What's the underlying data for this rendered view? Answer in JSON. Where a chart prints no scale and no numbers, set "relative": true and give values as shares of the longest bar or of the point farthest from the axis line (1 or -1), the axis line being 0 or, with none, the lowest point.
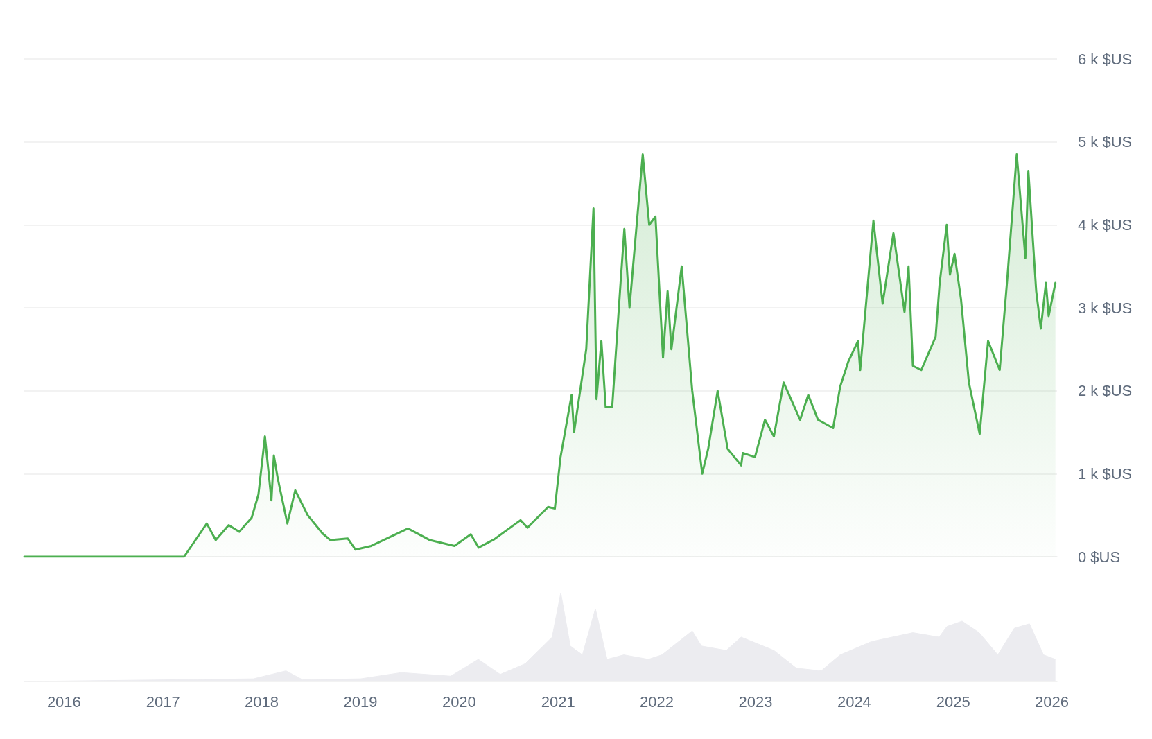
{
  "chart_data": [
    {
      "type": "area",
      "x": [
        "2015-08-07",
        "2016-06-15",
        "2017-01-15",
        "2017-03-20",
        "2017-06-12",
        "2017-07-15",
        "2017-09-01",
        "2017-10-10",
        "2017-11-25",
        "2017-12-20",
        "2018-01-13",
        "2018-02-06",
        "2018-02-15",
        "2018-03-01",
        "2018-04-06",
        "2018-05-05",
        "2018-06-20",
        "2018-08-14",
        "2018-09-12",
        "2018-11-15",
        "2018-12-14",
        "2019-02-10",
        "2019-06-26",
        "2019-09-15",
        "2019-12-15",
        "2020-02-13",
        "2020-03-13",
        "2020-05-10",
        "2020-08-15",
        "2020-09-10",
        "2020-11-25",
        "2020-12-20",
        "2021-01-10",
        "2021-02-20",
        "2021-03-01",
        "2021-04-15",
        "2021-05-12",
        "2021-05-23",
        "2021-06-10",
        "2021-06-26",
        "2021-07-20",
        "2021-08-20",
        "2021-09-03",
        "2021-09-22",
        "2021-11-10",
        "2021-12-04",
        "2021-12-27",
        "2022-01-24",
        "2022-02-10",
        "2022-02-24",
        "2022-04-03",
        "2022-05-12",
        "2022-06-18",
        "2022-07-10",
        "2022-08-14",
        "2022-09-20",
        "2022-11-09",
        "2022-11-15",
        "2022-12-30",
        "2023-02-05",
        "2023-03-10",
        "2023-04-15",
        "2023-06-15",
        "2023-07-15",
        "2023-08-20",
        "2023-10-15",
        "2023-11-10",
        "2023-12-10",
        "2024-01-15",
        "2024-01-23",
        "2024-03-12",
        "2024-04-15",
        "2024-05-25",
        "2024-07-05",
        "2024-07-20",
        "2024-08-05",
        "2024-09-05",
        "2024-10-28",
        "2024-11-12",
        "2024-12-08",
        "2024-12-20",
        "2025-01-06",
        "2025-01-30",
        "2025-02-28",
        "2025-04-09",
        "2025-05-10",
        "2025-06-22",
        "2025-07-20",
        "2025-08-24",
        "2025-09-25",
        "2025-10-06",
        "2025-11-04",
        "2025-11-21",
        "2025-12-10",
        "2025-12-20",
        "2026-01-14"
      ],
      "series": [
        {
          "color": "#4caf50",
          "values": [
            0,
            0,
            0,
            0,
            400,
            200,
            380,
            300,
            470,
            750,
            1450,
            680,
            1220,
            950,
            400,
            800,
            500,
            280,
            200,
            220,
            85,
            130,
            340,
            200,
            130,
            270,
            110,
            210,
            440,
            350,
            600,
            580,
            1200,
            1950,
            1500,
            2500,
            4200,
            1900,
            2600,
            1800,
            1800,
            3300,
            3950,
            3000,
            4850,
            4000,
            4100,
            2400,
            3200,
            2500,
            3500,
            2000,
            1000,
            1300,
            2000,
            1300,
            1100,
            1250,
            1200,
            1650,
            1450,
            2100,
            1650,
            1950,
            1650,
            1550,
            2050,
            2350,
            2600,
            2250,
            4050,
            3050,
            3900,
            2950,
            3500,
            2300,
            2250,
            2650,
            3300,
            4000,
            3400,
            3650,
            3100,
            2100,
            1480,
            2600,
            2250,
            3350,
            4850,
            3600,
            4650,
            3200,
            2750,
            3300,
            2900,
            3300
          ]
        }
      ],
      "xlim": [
        "2015-08-07",
        "2026-01-20"
      ],
      "xticks": [
        "2016",
        "2017",
        "2018",
        "2019",
        "2020",
        "2021",
        "2022",
        "2023",
        "2024",
        "2025",
        "2026"
      ],
      "ylim": [
        0,
        6000
      ],
      "yticks": [
        {
          "value": 0,
          "label": "0 $US"
        },
        {
          "value": 1000,
          "label": "1 k $US"
        },
        {
          "value": 2000,
          "label": "2 k $US"
        },
        {
          "value": 3000,
          "label": "3 k $US"
        },
        {
          "value": 4000,
          "label": "4 k $US"
        },
        {
          "value": 5000,
          "label": "5 k $US"
        },
        {
          "value": 6000,
          "label": "6 k $US"
        }
      ],
      "grid": "y",
      "tick_labels": "y"
    },
    {
      "type": "area",
      "relative": true,
      "x": [
        "2015-08-07",
        "2017-12-01",
        "2018-04-01",
        "2018-06-01",
        "2019-01-01",
        "2019-06-01",
        "2019-12-01",
        "2020-03-12",
        "2020-06-01",
        "2020-09-01",
        "2020-12-10",
        "2021-01-11",
        "2021-02-15",
        "2021-04-01",
        "2021-05-19",
        "2021-07-01",
        "2021-09-01",
        "2021-12-01",
        "2022-01-20",
        "2022-05-12",
        "2022-06-15",
        "2022-09-15",
        "2022-11-09",
        "2023-03-10",
        "2023-06-01",
        "2023-09-01",
        "2023-11-10",
        "2024-03-05",
        "2024-08-05",
        "2024-11-10",
        "2024-12-09",
        "2025-02-03",
        "2025-04-07",
        "2025-06-15",
        "2025-08-15",
        "2025-10-10",
        "2025-12-01",
        "2026-01-14"
      ],
      "series": [
        {
          "color": "#ececf0",
          "values": [
            0,
            0.03,
            0.12,
            0.02,
            0.03,
            0.1,
            0.06,
            0.25,
            0.08,
            0.2,
            0.5,
            1,
            0.4,
            0.3,
            0.82,
            0.25,
            0.3,
            0.25,
            0.3,
            0.57,
            0.4,
            0.35,
            0.5,
            0.35,
            0.15,
            0.12,
            0.3,
            0.45,
            0.55,
            0.5,
            0.62,
            0.68,
            0.55,
            0.3,
            0.6,
            0.65,
            0.3,
            0.25
          ]
        }
      ],
      "xlim": [
        "2015-08-07",
        "2026-01-20"
      ],
      "xticks": [
        "2016",
        "2017",
        "2018",
        "2019",
        "2020",
        "2021",
        "2022",
        "2023",
        "2024",
        "2025",
        "2026"
      ],
      "grid": false,
      "tick_labels": "x"
    }
  ]
}
